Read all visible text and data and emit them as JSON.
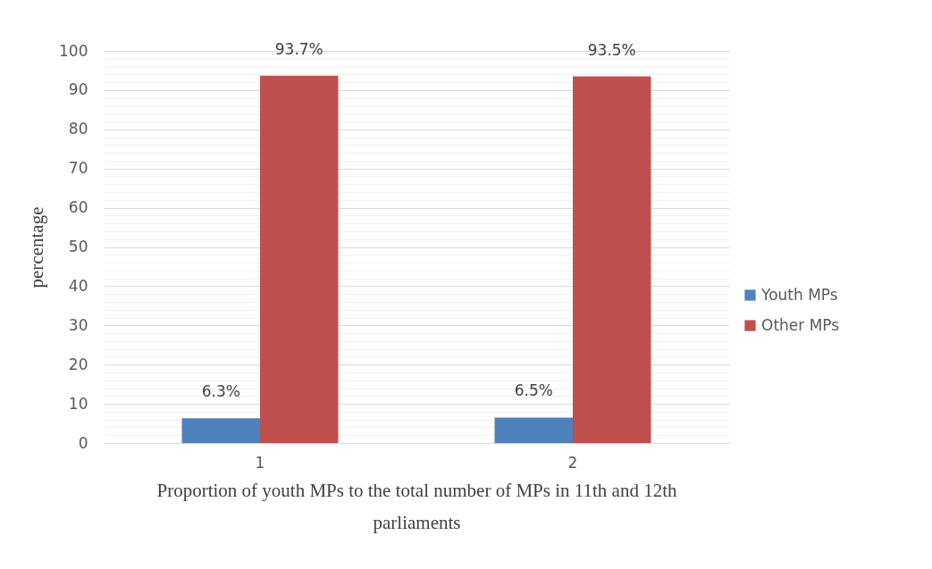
{
  "chart_data": {
    "type": "bar",
    "categories": [
      "1",
      "2"
    ],
    "xlabel": "Proportion of youth MPs to the total number of MPs in 11th and 12th parliaments",
    "ylabel": "percentage",
    "series": [
      {
        "name": "Youth MPs",
        "color": "#4f81bd",
        "values": [
          6.3,
          6.5
        ],
        "value_labels": [
          "6.3%",
          "6.5%"
        ]
      },
      {
        "name": "Other MPs",
        "color": "#c0504d",
        "values": [
          93.7,
          93.5
        ],
        "value_labels": [
          "93.7%",
          "93.5%"
        ]
      }
    ],
    "ylim": [
      0,
      100
    ],
    "yticks": [
      0,
      {
        "value": 2,
        "label": null
      },
      {
        "value": 4,
        "label": null
      },
      {
        "value": 6,
        "label": null
      },
      {
        "value": 8,
        "label": null
      },
      10,
      {
        "value": 12,
        "label": null
      },
      {
        "value": 14,
        "label": null
      },
      {
        "value": 16,
        "label": null
      },
      {
        "value": 18,
        "label": null
      },
      20,
      {
        "value": 22,
        "label": null
      },
      {
        "value": 24,
        "label": null
      },
      {
        "value": 26,
        "label": null
      },
      {
        "value": 28,
        "label": null
      },
      30,
      {
        "value": 32,
        "label": null
      },
      {
        "value": 34,
        "label": null
      },
      {
        "value": 36,
        "label": null
      },
      {
        "value": 38,
        "label": null
      },
      40,
      {
        "value": 42,
        "label": null
      },
      {
        "value": 44,
        "label": null
      },
      {
        "value": 46,
        "label": null
      },
      {
        "value": 48,
        "label": null
      },
      50,
      {
        "value": 52,
        "label": null
      },
      {
        "value": 54,
        "label": null
      },
      {
        "value": 56,
        "label": null
      },
      {
        "value": 58,
        "label": null
      },
      60,
      {
        "value": 62,
        "label": null
      },
      {
        "value": 64,
        "label": null
      },
      {
        "value": 66,
        "label": null
      },
      {
        "value": 68,
        "label": null
      },
      70,
      {
        "value": 72,
        "label": null
      },
      {
        "value": 74,
        "label": null
      },
      {
        "value": 76,
        "label": null
      },
      {
        "value": 78,
        "label": null
      },
      80,
      {
        "value": 82,
        "label": null
      },
      {
        "value": 84,
        "label": null
      },
      {
        "value": 86,
        "label": null
      },
      {
        "value": 88,
        "label": null
      },
      90,
      {
        "value": 92,
        "label": null
      },
      {
        "value": 94,
        "label": null
      },
      {
        "value": 96,
        "label": null
      },
      {
        "value": 98,
        "label": null
      },
      100
    ],
    "grid": true,
    "legend": "right"
  }
}
